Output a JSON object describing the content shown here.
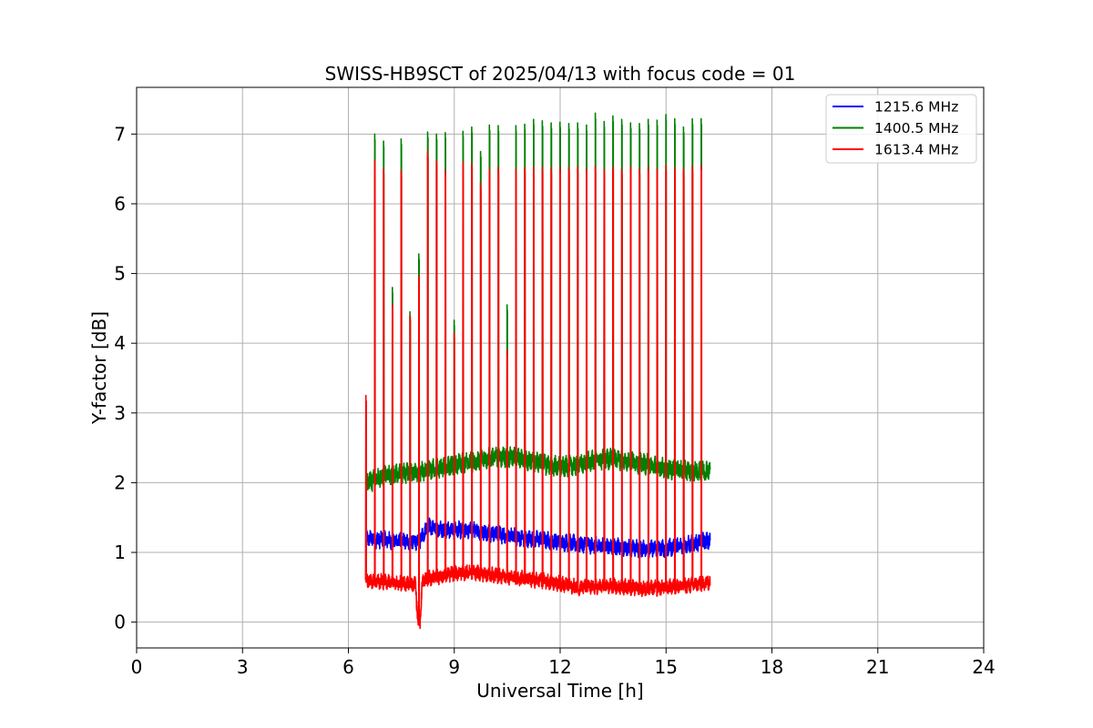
{
  "chart_data": {
    "type": "line",
    "title": "SWISS-HB9SCT of 2025/04/13 with focus code = 01",
    "xlabel": "Universal Time [h]",
    "ylabel": "Y-factor [dB]",
    "xlim": [
      0,
      24
    ],
    "ylim": [
      -0.37,
      7.67
    ],
    "xticks": [
      0,
      3,
      6,
      9,
      12,
      15,
      18,
      21,
      24
    ],
    "yticks": [
      0,
      1,
      2,
      3,
      4,
      5,
      6,
      7
    ],
    "grid": true,
    "legend_position": "top-right",
    "data_range_hours": [
      6.5,
      16.25
    ],
    "calibration_spikes_at_hours": [
      6.5,
      6.75,
      7.0,
      7.25,
      7.5,
      7.75,
      8.0,
      8.25,
      8.5,
      8.75,
      9.0,
      9.25,
      9.5,
      9.75,
      10.0,
      10.25,
      10.5,
      10.75,
      11.0,
      11.25,
      11.5,
      11.75,
      12.0,
      12.25,
      12.5,
      12.75,
      13.0,
      13.25,
      13.5,
      13.75,
      14.0,
      14.25,
      14.5,
      14.75,
      15.0,
      15.25,
      15.5,
      15.75,
      16.0
    ],
    "series": [
      {
        "name": "1215.6 MHz",
        "color": "#0000ff",
        "baseline_x": [
          6.5,
          7.0,
          7.5,
          8.0,
          8.25,
          8.5,
          9.0,
          9.5,
          10.0,
          10.5,
          11.0,
          11.5,
          12.0,
          12.5,
          13.0,
          13.5,
          14.0,
          14.5,
          15.0,
          15.5,
          16.0,
          16.25
        ],
        "baseline_y": [
          1.2,
          1.18,
          1.16,
          1.15,
          1.38,
          1.33,
          1.32,
          1.32,
          1.28,
          1.24,
          1.2,
          1.18,
          1.15,
          1.12,
          1.1,
          1.08,
          1.06,
          1.05,
          1.06,
          1.1,
          1.15,
          1.17
        ],
        "noise_amplitude": 0.1,
        "spike_peaks": []
      },
      {
        "name": "1400.5 MHz",
        "color": "#008000",
        "baseline_x": [
          6.5,
          7.0,
          7.5,
          8.0,
          8.5,
          9.0,
          9.5,
          10.0,
          10.5,
          11.0,
          11.5,
          12.0,
          12.5,
          13.0,
          13.5,
          14.0,
          14.5,
          15.0,
          15.5,
          16.0,
          16.25
        ],
        "baseline_y": [
          2.0,
          2.1,
          2.12,
          2.15,
          2.2,
          2.25,
          2.3,
          2.35,
          2.38,
          2.33,
          2.28,
          2.22,
          2.25,
          2.32,
          2.35,
          2.3,
          2.26,
          2.2,
          2.18,
          2.15,
          2.2
        ],
        "noise_amplitude": 0.12,
        "spike_peaks": [
          2.0,
          7.0,
          6.9,
          4.8,
          6.93,
          4.45,
          5.28,
          7.03,
          7.0,
          7.02,
          4.33,
          7.04,
          7.1,
          6.75,
          7.13,
          7.12,
          4.55,
          7.12,
          7.14,
          7.21,
          7.19,
          7.16,
          7.17,
          7.15,
          7.16,
          7.13,
          7.3,
          7.18,
          7.26,
          7.21,
          7.16,
          7.15,
          7.21,
          7.2,
          7.28,
          7.22,
          7.1,
          7.22,
          7.22
        ]
      },
      {
        "name": "1613.4 MHz",
        "color": "#ff0000",
        "baseline_x": [
          6.5,
          7.0,
          7.5,
          7.9,
          7.97,
          8.03,
          8.1,
          8.5,
          9.0,
          9.5,
          10.0,
          10.5,
          11.0,
          11.5,
          12.0,
          12.5,
          13.0,
          13.5,
          14.0,
          14.5,
          15.0,
          15.5,
          16.0,
          16.25
        ],
        "baseline_y": [
          0.6,
          0.58,
          0.55,
          0.55,
          0.02,
          0.02,
          0.6,
          0.65,
          0.7,
          0.72,
          0.68,
          0.65,
          0.62,
          0.6,
          0.55,
          0.5,
          0.5,
          0.52,
          0.5,
          0.48,
          0.5,
          0.52,
          0.55,
          0.58
        ],
        "noise_amplitude": 0.09,
        "spike_peaks": [
          3.25,
          6.62,
          6.5,
          4.55,
          6.48,
          4.4,
          4.97,
          6.75,
          6.62,
          6.48,
          4.15,
          6.6,
          6.58,
          6.3,
          6.5,
          6.52,
          3.9,
          6.5,
          6.52,
          6.53,
          6.53,
          6.52,
          6.52,
          6.52,
          6.53,
          6.5,
          6.54,
          6.5,
          6.53,
          6.5,
          6.53,
          6.5,
          6.52,
          6.5,
          6.55,
          6.52,
          6.5,
          6.54,
          6.55
        ]
      }
    ]
  }
}
